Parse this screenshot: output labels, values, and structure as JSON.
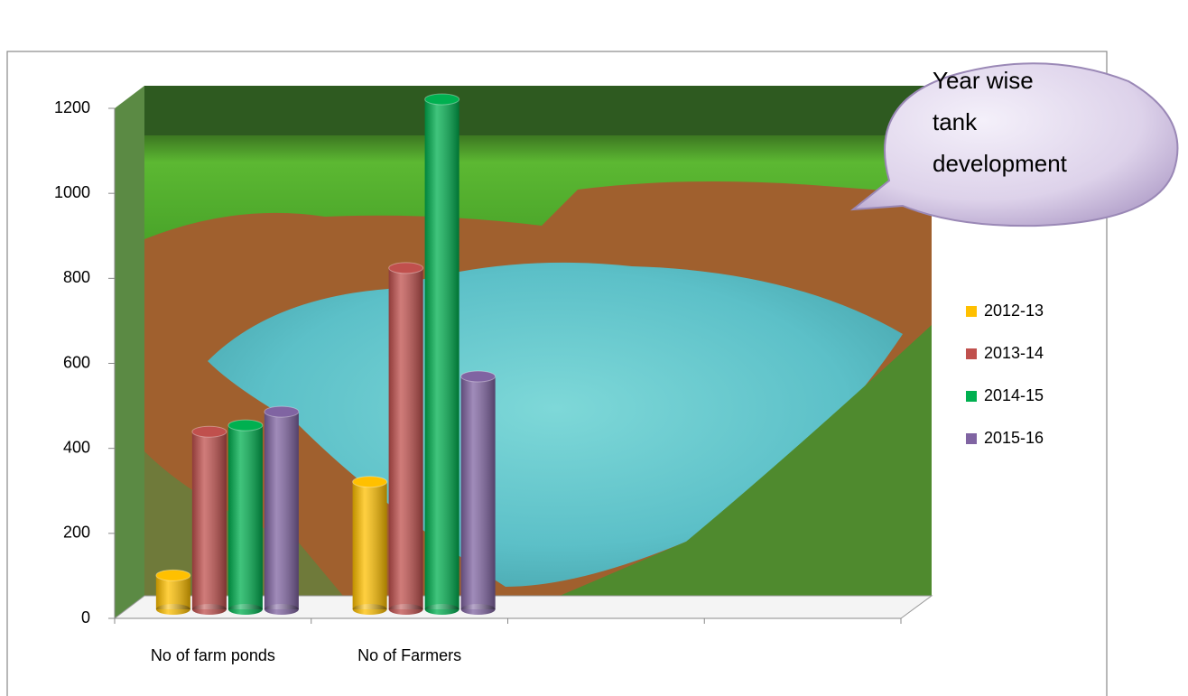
{
  "chart_data": {
    "type": "bar",
    "annotation": "Year wise tank development",
    "categories": [
      "No of farm ponds",
      "No of Farmers",
      null,
      null
    ],
    "series": [
      {
        "name": "2012-13",
        "color": "#ffc000",
        "values": [
          80,
          300,
          null,
          null
        ]
      },
      {
        "name": "2013-14",
        "color": "#c0504d",
        "values": [
          418,
          803,
          null,
          null
        ]
      },
      {
        "name": "2014-15",
        "color": "#00b050",
        "values": [
          433,
          1200,
          null,
          null
        ]
      },
      {
        "name": "2015-16",
        "color": "#8064a2",
        "values": [
          465,
          548,
          null,
          null
        ]
      }
    ],
    "ylim": [
      0,
      1200
    ],
    "yticks": [
      0,
      200,
      400,
      600,
      800,
      1000,
      1200
    ],
    "legend": "right"
  }
}
